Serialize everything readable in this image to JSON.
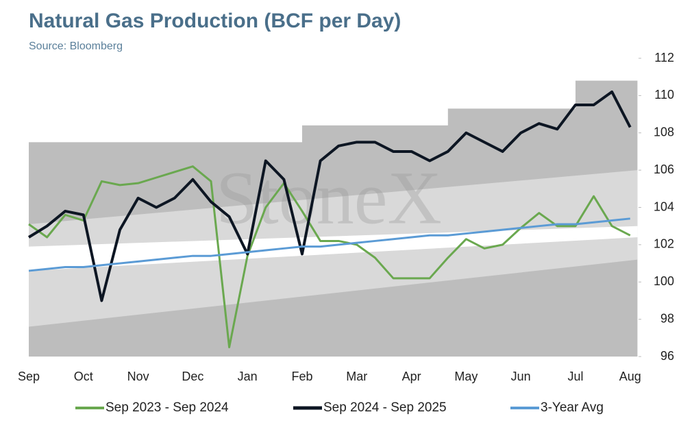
{
  "chart_data": {
    "type": "line",
    "title": "Natural Gas Production (BCF per Day)",
    "subtitle": "Source: Bloomberg",
    "watermark": "StoneX",
    "categories": [
      "Sep",
      null,
      null,
      "Oct",
      null,
      null,
      "Nov",
      null,
      null,
      "Dec",
      null,
      null,
      "Jan",
      null,
      null,
      "Feb",
      null,
      null,
      "Mar",
      null,
      null,
      "Apr",
      null,
      null,
      "May",
      null,
      null,
      "Jun",
      null,
      null,
      "Jul",
      null,
      null,
      "Aug"
    ],
    "ylim": [
      96,
      112
    ],
    "yticks": [
      96,
      98,
      100,
      102,
      104,
      106,
      108,
      110,
      112
    ],
    "y_axis_side": "right",
    "legend": "bottom",
    "bands": [
      {
        "color": "#bdbdbd",
        "x": [
          0,
          15,
          15,
          23,
          23,
          30,
          30,
          33.4
        ],
        "low": [
          96,
          96,
          96,
          96,
          96,
          96,
          96,
          96
        ],
        "high": [
          107.5,
          107.5,
          108.4,
          108.4,
          109.3,
          109.3,
          110.8,
          110.8
        ]
      },
      {
        "color": "#d9d9d9",
        "x": [
          0,
          33.4
        ],
        "low": [
          97.6,
          101.2
        ],
        "high": [
          103.1,
          106.0
        ]
      },
      {
        "color": "#ffffff",
        "x": [
          0,
          33.4
        ],
        "low": [
          100.6,
          102.4
        ],
        "high": [
          101.9,
          103.0
        ]
      }
    ],
    "series": [
      {
        "name": "Sep 2023 - Sep 2024",
        "color": "#6aa84f",
        "width": 3,
        "values": [
          103.1,
          102.4,
          103.6,
          103.3,
          105.4,
          105.2,
          105.3,
          105.6,
          105.9,
          106.2,
          105.4,
          96.5,
          101.4,
          104.0,
          105.3,
          103.8,
          102.2,
          102.2,
          102.0,
          101.3,
          100.2,
          100.2,
          100.2,
          101.3,
          102.3,
          101.8,
          102.0,
          102.9,
          103.7,
          103.0,
          103.0,
          104.6,
          103.0,
          102.5
        ]
      },
      {
        "name": "Sep 2024 - Sep 2025",
        "color": "#0d1623",
        "width": 4,
        "values": [
          102.4,
          103.0,
          103.8,
          103.6,
          99.0,
          102.8,
          104.5,
          104.0,
          104.5,
          105.5,
          104.3,
          103.5,
          101.5,
          106.5,
          105.5,
          101.5,
          106.5,
          107.3,
          107.5,
          107.5,
          107.0,
          107.0,
          106.5,
          107.0,
          108.0,
          107.5,
          107.0,
          108.0,
          108.5,
          108.2,
          109.5,
          109.5,
          110.2,
          108.3
        ]
      },
      {
        "name": "3-Year Avg",
        "color": "#5b9bd5",
        "width": 3,
        "values": [
          100.6,
          100.7,
          100.8,
          100.8,
          100.9,
          101.0,
          101.1,
          101.2,
          101.3,
          101.4,
          101.4,
          101.5,
          101.6,
          101.7,
          101.8,
          101.9,
          101.9,
          102.0,
          102.1,
          102.2,
          102.3,
          102.4,
          102.5,
          102.5,
          102.6,
          102.7,
          102.8,
          102.9,
          103.0,
          103.1,
          103.1,
          103.2,
          103.3,
          103.4
        ]
      }
    ]
  }
}
